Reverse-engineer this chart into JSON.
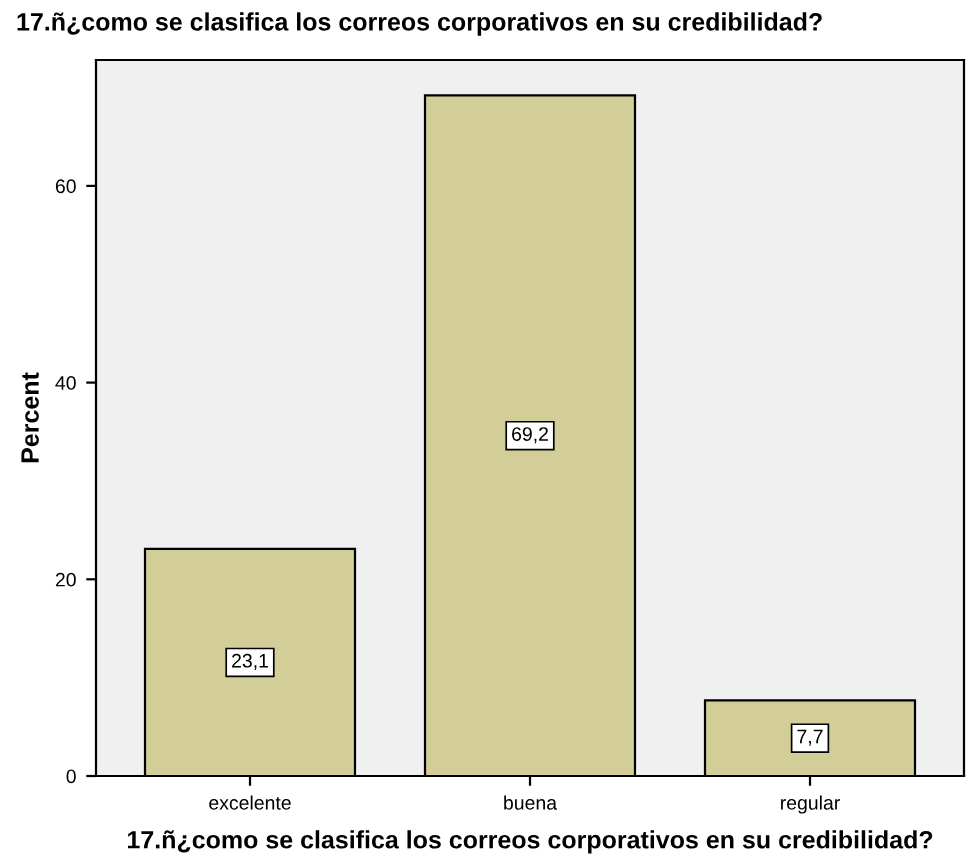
{
  "chart_data": {
    "type": "bar",
    "title": "17.ñ¿como se clasifica los correos corporativos en su credibilidad?",
    "xlabel": "17.ñ¿como se clasifica los correos corporativos en su credibilidad?",
    "ylabel": "Percent",
    "categories": [
      "excelente",
      "buena",
      "regular"
    ],
    "values": [
      23.1,
      69.2,
      7.7
    ],
    "value_labels": [
      "23,1",
      "69,2",
      "7,7"
    ],
    "color": "#d3ce97",
    "ylim": [
      0,
      72.8
    ],
    "yticks": [
      0,
      20,
      40,
      60
    ],
    "grid": false
  }
}
